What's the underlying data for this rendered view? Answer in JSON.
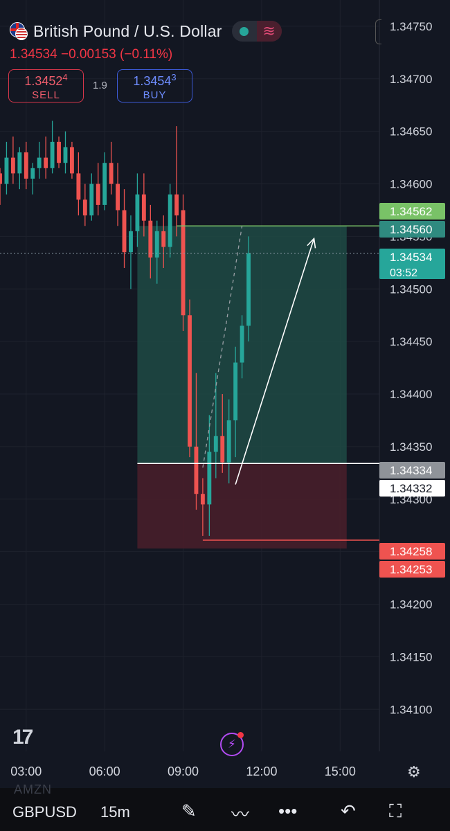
{
  "header": {
    "symbol_title": "British Pound / U.S. Dollar",
    "last_price": "1.34534",
    "change": "−0.00153",
    "change_pct": "(−0.11%)",
    "sell": {
      "price_main": "1.3452",
      "price_sup": "4",
      "label": "SELL"
    },
    "buy": {
      "price_main": "1.3454",
      "price_sup": "3",
      "label": "BUY"
    },
    "spread": "1.9"
  },
  "colors": {
    "background": "#131722",
    "bull": "#26a69a",
    "bear": "#ef5350",
    "target_zone": "#1f4a44",
    "stop_zone": "#4a1f2a",
    "target_line": "#79c267",
    "stop_line": "#ef5350"
  },
  "chart_data": {
    "type": "candlestick",
    "timeframe": "15m",
    "x_ticks": [
      "03:00",
      "06:00",
      "09:00",
      "12:00",
      "15:00"
    ],
    "y_ticks": [
      "1.34750",
      "1.34700",
      "1.34650",
      "1.34600",
      "1.34550",
      "1.34500",
      "1.34450",
      "1.34400",
      "1.34350",
      "1.34300",
      "1.34250",
      "1.34200",
      "1.34150",
      "1.34100"
    ],
    "y_range": [
      1.3406,
      1.34775
    ],
    "x_range": [
      "02:00",
      "16:30"
    ],
    "current_price_line": 1.34534,
    "candles": [
      [
        "02:00",
        1.3461,
        1.34615,
        1.3458,
        1.346
      ],
      [
        "02:15",
        1.346,
        1.3464,
        1.3459,
        1.34625
      ],
      [
        "02:30",
        1.34625,
        1.34645,
        1.346,
        1.3461
      ],
      [
        "02:45",
        1.3461,
        1.34635,
        1.34595,
        1.3463
      ],
      [
        "03:00",
        1.3463,
        1.3464,
        1.34595,
        1.34605
      ],
      [
        "03:15",
        1.34605,
        1.3462,
        1.3459,
        1.34615
      ],
      [
        "03:30",
        1.34615,
        1.3464,
        1.34605,
        1.34625
      ],
      [
        "03:45",
        1.34625,
        1.34645,
        1.34605,
        1.34615
      ],
      [
        "04:00",
        1.34615,
        1.3466,
        1.3461,
        1.3464
      ],
      [
        "04:15",
        1.3464,
        1.34645,
        1.34615,
        1.3462
      ],
      [
        "04:30",
        1.3462,
        1.3465,
        1.3461,
        1.34635
      ],
      [
        "04:45",
        1.34635,
        1.3464,
        1.34605,
        1.3461
      ],
      [
        "05:00",
        1.3461,
        1.3463,
        1.3457,
        1.34585
      ],
      [
        "05:15",
        1.34585,
        1.346,
        1.3456,
        1.3457
      ],
      [
        "05:30",
        1.3457,
        1.3461,
        1.34565,
        1.346
      ],
      [
        "05:45",
        1.346,
        1.3462,
        1.3457,
        1.3458
      ],
      [
        "06:00",
        1.3458,
        1.3463,
        1.34575,
        1.3462
      ],
      [
        "06:15",
        1.3462,
        1.3464,
        1.3459,
        1.346
      ],
      [
        "06:30",
        1.346,
        1.3462,
        1.3456,
        1.34575
      ],
      [
        "06:45",
        1.34575,
        1.34595,
        1.3452,
        1.34535
      ],
      [
        "07:00",
        1.34535,
        1.3457,
        1.345,
        1.34555
      ],
      [
        "07:15",
        1.34555,
        1.3461,
        1.3454,
        1.3459
      ],
      [
        "07:30",
        1.3459,
        1.3461,
        1.3455,
        1.34565
      ],
      [
        "07:45",
        1.34565,
        1.3458,
        1.3451,
        1.3453
      ],
      [
        "08:00",
        1.3453,
        1.34565,
        1.34505,
        1.34555
      ],
      [
        "08:15",
        1.34555,
        1.3457,
        1.3452,
        1.3454
      ],
      [
        "08:30",
        1.3454,
        1.346,
        1.3453,
        1.3459
      ],
      [
        "08:45",
        1.3459,
        1.34655,
        1.3455,
        1.3457
      ],
      [
        "09:00",
        1.34575,
        1.3459,
        1.3446,
        1.34475
      ],
      [
        "09:15",
        1.34475,
        1.3449,
        1.3434,
        1.3435
      ],
      [
        "09:30",
        1.3435,
        1.3442,
        1.3429,
        1.34305
      ],
      [
        "09:45",
        1.34305,
        1.3432,
        1.34265,
        1.34295
      ],
      [
        "10:00",
        1.34295,
        1.3438,
        1.34265,
        1.34345
      ],
      [
        "10:15",
        1.34345,
        1.3442,
        1.3432,
        1.3436
      ],
      [
        "10:30",
        1.3436,
        1.344,
        1.34325,
        1.34335
      ],
      [
        "10:45",
        1.34335,
        1.34395,
        1.34315,
        1.34375
      ],
      [
        "11:00",
        1.34375,
        1.34445,
        1.3434,
        1.3443
      ],
      [
        "11:15",
        1.3443,
        1.34475,
        1.34415,
        1.34465
      ],
      [
        "11:30",
        1.34465,
        1.3455,
        1.3445,
        1.34534
      ]
    ],
    "position": {
      "start": "07:15",
      "end": "15:15",
      "entry": 1.34334,
      "target": 1.3456,
      "stop": 1.34253
    },
    "price_labels": [
      {
        "value": 1.34562,
        "text": "1.34562",
        "style": "target-bg"
      },
      {
        "value": 1.3456,
        "text": "1.34560",
        "style": "target-fill"
      },
      {
        "value": 1.34534,
        "text": "1.34534",
        "sub": "03:52",
        "style": "current"
      },
      {
        "value": 1.34334,
        "text": "1.34334",
        "style": "entry-grey"
      },
      {
        "value": 1.34332,
        "text": "1.34332",
        "style": "entry-white"
      },
      {
        "value": 1.34258,
        "text": "1.34258",
        "style": "stop"
      },
      {
        "value": 1.34253,
        "text": "1.34253",
        "style": "stop"
      }
    ],
    "annotations": [
      {
        "type": "arrow",
        "from": [
          "11:00",
          1.34314
        ],
        "to": [
          "14:00",
          1.34548
        ]
      },
      {
        "type": "dashed-projection",
        "from": [
          "09:45",
          1.3433
        ],
        "to": [
          "11:15",
          1.3456
        ]
      },
      {
        "type": "stop-line",
        "from": [
          "09:45",
          1.34261
        ],
        "to": [
          "16:30",
          1.34261
        ]
      }
    ]
  },
  "bottom": {
    "ghost_text": "AMZN",
    "symbol": "GBPUSD",
    "interval": "15m",
    "icons": [
      "pencil-icon",
      "trend-line-icon",
      "more-icon",
      "undo-icon",
      "fullscreen-icon"
    ]
  }
}
